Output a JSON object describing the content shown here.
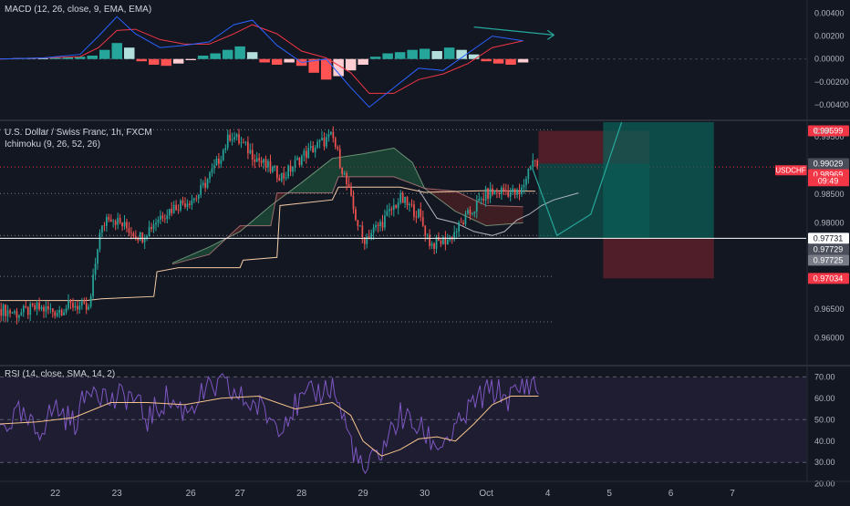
{
  "chart_data": {
    "type": "candlestick",
    "symbol_title": "U.S. Dollar / Swiss Franc, 1h, FXCM",
    "currency": "CHF",
    "symbol_tag": "USDCHF",
    "countdown": "09:49",
    "ichimoku_label": "Ichimoku (9, 26, 52, 26)",
    "x_ticks": [
      "22",
      "23",
      "26",
      "27",
      "28",
      "29",
      "30",
      "Oct",
      "4",
      "5",
      "6",
      "7"
    ],
    "x_tick_positions": [
      1.0,
      2.0,
      3.2,
      4.0,
      5.0,
      6.0,
      7.0,
      8.0,
      9.0,
      10.0,
      11.0,
      12.0
    ],
    "x_range": [
      0.1,
      13.2
    ],
    "price_axis": {
      "ylim": [
        0.9555,
        0.9975
      ],
      "ticks": [
        "0.99500",
        "0.98500",
        "0.98000",
        "0.96500",
        "0.96000"
      ],
      "tick_values": [
        0.995,
        0.985,
        0.98,
        0.965,
        0.96
      ]
    },
    "price_labels": [
      {
        "text": "0.99599",
        "value": 0.99599,
        "color": "#f23645"
      },
      {
        "text": "0.99029",
        "value": 0.99029,
        "color": "#4a4e5a"
      },
      {
        "text": "0.98969",
        "value": 0.98969,
        "color": "#f23645"
      },
      {
        "text": "0.97731",
        "value": 0.97731,
        "color": "#ffffff"
      },
      {
        "text": "0.97729",
        "value": 0.97729,
        "color": "#4a4e5a"
      },
      {
        "text": "0.97725",
        "value": 0.97725,
        "color": "#787b86"
      },
      {
        "text": "0.97034",
        "value": 0.97034,
        "color": "#f23645"
      }
    ],
    "horizontal_levels": [
      0.9962,
      0.9851,
      0.9778,
      0.9707,
      0.9628
    ],
    "current_price": 0.98969,
    "entry_line": 0.97731,
    "close_series": [
      {
        "x": 0.1,
        "y": 0.965
      },
      {
        "x": 0.4,
        "y": 0.9642
      },
      {
        "x": 0.7,
        "y": 0.9652
      },
      {
        "x": 1.0,
        "y": 0.9646
      },
      {
        "x": 1.3,
        "y": 0.9658
      },
      {
        "x": 1.55,
        "y": 0.9648
      },
      {
        "x": 1.7,
        "y": 0.9772
      },
      {
        "x": 1.85,
        "y": 0.9815
      },
      {
        "x": 2.1,
        "y": 0.9795
      },
      {
        "x": 2.4,
        "y": 0.9775
      },
      {
        "x": 2.7,
        "y": 0.9812
      },
      {
        "x": 3.0,
        "y": 0.9832
      },
      {
        "x": 3.3,
        "y": 0.9845
      },
      {
        "x": 3.6,
        "y": 0.9898
      },
      {
        "x": 3.85,
        "y": 0.9955
      },
      {
        "x": 4.1,
        "y": 0.993
      },
      {
        "x": 4.4,
        "y": 0.99
      },
      {
        "x": 4.7,
        "y": 0.988
      },
      {
        "x": 5.0,
        "y": 0.9915
      },
      {
        "x": 5.3,
        "y": 0.9938
      },
      {
        "x": 5.5,
        "y": 0.995
      },
      {
        "x": 5.7,
        "y": 0.988
      },
      {
        "x": 5.85,
        "y": 0.982
      },
      {
        "x": 6.0,
        "y": 0.977
      },
      {
        "x": 6.3,
        "y": 0.98
      },
      {
        "x": 6.6,
        "y": 0.9842
      },
      {
        "x": 6.9,
        "y": 0.9815
      },
      {
        "x": 7.1,
        "y": 0.9762
      },
      {
        "x": 7.4,
        "y": 0.9772
      },
      {
        "x": 7.7,
        "y": 0.9812
      },
      {
        "x": 8.0,
        "y": 0.985
      },
      {
        "x": 8.3,
        "y": 0.9857
      },
      {
        "x": 8.55,
        "y": 0.9848
      },
      {
        "x": 8.75,
        "y": 0.9912
      },
      {
        "x": 8.85,
        "y": 0.9898
      }
    ],
    "kijun": [
      {
        "x": 0.1,
        "y": 0.9665
      },
      {
        "x": 1.5,
        "y": 0.9665
      },
      {
        "x": 1.75,
        "y": 0.9668
      },
      {
        "x": 2.6,
        "y": 0.9672
      },
      {
        "x": 2.65,
        "y": 0.9715
      },
      {
        "x": 3.0,
        "y": 0.9722
      },
      {
        "x": 4.0,
        "y": 0.9722
      },
      {
        "x": 4.05,
        "y": 0.9735
      },
      {
        "x": 4.6,
        "y": 0.974
      },
      {
        "x": 4.65,
        "y": 0.983
      },
      {
        "x": 5.5,
        "y": 0.984
      },
      {
        "x": 5.6,
        "y": 0.9862
      },
      {
        "x": 6.6,
        "y": 0.9862
      },
      {
        "x": 7.0,
        "y": 0.9853
      },
      {
        "x": 8.0,
        "y": 0.9856
      },
      {
        "x": 8.8,
        "y": 0.9855
      }
    ],
    "cloud_span_a": [
      {
        "x": 2.9,
        "y": 0.973
      },
      {
        "x": 3.5,
        "y": 0.9758
      },
      {
        "x": 4.0,
        "y": 0.9785
      },
      {
        "x": 4.5,
        "y": 0.983
      },
      {
        "x": 5.0,
        "y": 0.987
      },
      {
        "x": 5.5,
        "y": 0.9912
      },
      {
        "x": 6.0,
        "y": 0.992
      },
      {
        "x": 6.5,
        "y": 0.993
      },
      {
        "x": 6.8,
        "y": 0.9905
      },
      {
        "x": 7.0,
        "y": 0.986
      },
      {
        "x": 7.5,
        "y": 0.982
      },
      {
        "x": 8.0,
        "y": 0.9795
      },
      {
        "x": 8.6,
        "y": 0.98
      }
    ],
    "cloud_span_b": [
      {
        "x": 2.9,
        "y": 0.9728
      },
      {
        "x": 3.5,
        "y": 0.9745
      },
      {
        "x": 4.0,
        "y": 0.9795
      },
      {
        "x": 4.5,
        "y": 0.9795
      },
      {
        "x": 4.6,
        "y": 0.9852
      },
      {
        "x": 5.5,
        "y": 0.9852
      },
      {
        "x": 5.6,
        "y": 0.988
      },
      {
        "x": 6.5,
        "y": 0.988
      },
      {
        "x": 7.0,
        "y": 0.986
      },
      {
        "x": 7.5,
        "y": 0.9855
      },
      {
        "x": 8.0,
        "y": 0.983
      },
      {
        "x": 8.6,
        "y": 0.9828
      }
    ],
    "chikou": [
      {
        "x": 6.9,
        "y": 0.9858
      },
      {
        "x": 7.2,
        "y": 0.9808
      },
      {
        "x": 7.5,
        "y": 0.98
      },
      {
        "x": 7.8,
        "y": 0.9785
      },
      {
        "x": 8.1,
        "y": 0.9778
      },
      {
        "x": 8.3,
        "y": 0.9785
      },
      {
        "x": 8.5,
        "y": 0.9805
      },
      {
        "x": 8.7,
        "y": 0.9815
      },
      {
        "x": 8.9,
        "y": 0.983
      },
      {
        "x": 9.1,
        "y": 0.984
      },
      {
        "x": 9.5,
        "y": 0.9852
      }
    ],
    "projection_path": [
      {
        "x": 8.75,
        "y": 0.9895
      },
      {
        "x": 9.15,
        "y": 0.9778
      },
      {
        "x": 9.7,
        "y": 0.9815
      },
      {
        "x": 10.2,
        "y": 0.9975
      }
    ],
    "risk_box": {
      "x0": 8.85,
      "x1": 10.65,
      "y_top": 0.99599,
      "y_bot": 0.97731,
      "stop": 0.99599,
      "entry": 0.99029,
      "target": 0.97731
    },
    "long_box": {
      "x0": 9.9,
      "x1": 11.7,
      "entry": 0.97731,
      "target": 0.9975,
      "stop": 0.97034
    },
    "macd": {
      "label": "MACD (12, 26, close, 9, EMA, EMA)",
      "ylim": [
        -0.0052,
        0.005
      ],
      "ticks": [
        "0.00400",
        "0.00200",
        "0.00000",
        "−0.00200",
        "−0.00400"
      ],
      "tick_values": [
        0.004,
        0.002,
        0.0,
        -0.002,
        -0.004
      ],
      "macd_line": [
        {
          "x": 0.1,
          "y": 0.0
        },
        {
          "x": 0.8,
          "y": 0.0001
        },
        {
          "x": 1.4,
          "y": 0.0004
        },
        {
          "x": 1.7,
          "y": 0.002
        },
        {
          "x": 2.0,
          "y": 0.0037
        },
        {
          "x": 2.3,
          "y": 0.0022
        },
        {
          "x": 2.7,
          "y": 0.001
        },
        {
          "x": 3.1,
          "y": 0.0012
        },
        {
          "x": 3.5,
          "y": 0.0015
        },
        {
          "x": 3.9,
          "y": 0.003
        },
        {
          "x": 4.2,
          "y": 0.0034
        },
        {
          "x": 4.6,
          "y": 0.0012
        },
        {
          "x": 5.0,
          "y": -0.0003
        },
        {
          "x": 5.4,
          "y": 0.0
        },
        {
          "x": 5.8,
          "y": -0.0025
        },
        {
          "x": 6.1,
          "y": -0.0042
        },
        {
          "x": 6.5,
          "y": -0.0025
        },
        {
          "x": 6.9,
          "y": -0.0008
        },
        {
          "x": 7.3,
          "y": -0.001
        },
        {
          "x": 7.7,
          "y": 0.0005
        },
        {
          "x": 8.1,
          "y": 0.002
        },
        {
          "x": 8.6,
          "y": 0.0016
        }
      ],
      "signal_line": [
        {
          "x": 0.1,
          "y": 0.0
        },
        {
          "x": 0.8,
          "y": 0.0001
        },
        {
          "x": 1.4,
          "y": 0.0002
        },
        {
          "x": 1.7,
          "y": 0.001
        },
        {
          "x": 2.0,
          "y": 0.0025
        },
        {
          "x": 2.3,
          "y": 0.0026
        },
        {
          "x": 2.7,
          "y": 0.0017
        },
        {
          "x": 3.1,
          "y": 0.0013
        },
        {
          "x": 3.5,
          "y": 0.0013
        },
        {
          "x": 3.9,
          "y": 0.0022
        },
        {
          "x": 4.2,
          "y": 0.003
        },
        {
          "x": 4.6,
          "y": 0.0022
        },
        {
          "x": 5.0,
          "y": 0.0007
        },
        {
          "x": 5.4,
          "y": 0.0001
        },
        {
          "x": 5.8,
          "y": -0.0012
        },
        {
          "x": 6.1,
          "y": -0.003
        },
        {
          "x": 6.5,
          "y": -0.003
        },
        {
          "x": 6.9,
          "y": -0.0018
        },
        {
          "x": 7.3,
          "y": -0.0013
        },
        {
          "x": 7.7,
          "y": -0.0004
        },
        {
          "x": 8.1,
          "y": 0.001
        },
        {
          "x": 8.6,
          "y": 0.0016
        }
      ],
      "histogram": [
        5e-05,
        0.0001,
        8e-05,
        5e-05,
        0.0001,
        0.00015,
        0.0002,
        0.0003,
        0.0008,
        0.0014,
        0.001,
        -0.0002,
        -0.0005,
        -0.0006,
        -0.0004,
        -0.0001,
        0.0003,
        0.0005,
        0.0008,
        0.0011,
        0.0006,
        -0.0003,
        -0.0005,
        -0.0003,
        -0.0006,
        -0.0012,
        -0.0018,
        -0.0015,
        -0.001,
        -0.0005,
        0.0002,
        0.0005,
        0.0006,
        0.0008,
        0.0009,
        0.0007,
        0.001,
        0.0008,
        0.0004,
        -0.0002,
        -0.0004,
        -0.0005,
        -0.0003
      ],
      "arrow": [
        {
          "x": 7.8,
          "y": 0.0028
        },
        {
          "x": 9.1,
          "y": 0.0021
        }
      ]
    },
    "rsi": {
      "label": "RSI (14, close, SMA, 14, 2)",
      "ylim": [
        22.0,
        74.0
      ],
      "band": [
        30.0,
        70.0
      ],
      "mid": 50.0,
      "ticks": [
        "70.00",
        "60.00",
        "50.00",
        "40.00",
        "30.00",
        "20.00"
      ],
      "tick_values": [
        70,
        60,
        50,
        40,
        30,
        20
      ],
      "rsi_line": [
        {
          "x": 0.1,
          "y": 46
        },
        {
          "x": 0.4,
          "y": 52
        },
        {
          "x": 0.7,
          "y": 44
        },
        {
          "x": 1.0,
          "y": 56
        },
        {
          "x": 1.3,
          "y": 48
        },
        {
          "x": 1.6,
          "y": 68
        },
        {
          "x": 1.9,
          "y": 58
        },
        {
          "x": 2.2,
          "y": 62
        },
        {
          "x": 2.5,
          "y": 50
        },
        {
          "x": 2.8,
          "y": 60
        },
        {
          "x": 3.1,
          "y": 54
        },
        {
          "x": 3.4,
          "y": 62
        },
        {
          "x": 3.7,
          "y": 66
        },
        {
          "x": 4.0,
          "y": 60
        },
        {
          "x": 4.3,
          "y": 56
        },
        {
          "x": 4.6,
          "y": 48
        },
        {
          "x": 4.9,
          "y": 56
        },
        {
          "x": 5.2,
          "y": 62
        },
        {
          "x": 5.5,
          "y": 66
        },
        {
          "x": 5.8,
          "y": 40
        },
        {
          "x": 6.0,
          "y": 24
        },
        {
          "x": 6.3,
          "y": 36
        },
        {
          "x": 6.6,
          "y": 52
        },
        {
          "x": 6.9,
          "y": 46
        },
        {
          "x": 7.2,
          "y": 38
        },
        {
          "x": 7.5,
          "y": 44
        },
        {
          "x": 7.8,
          "y": 58
        },
        {
          "x": 8.1,
          "y": 64
        },
        {
          "x": 8.4,
          "y": 60
        },
        {
          "x": 8.7,
          "y": 68
        },
        {
          "x": 8.85,
          "y": 64
        }
      ],
      "rsi_ma": [
        {
          "x": 0.1,
          "y": 48
        },
        {
          "x": 0.7,
          "y": 49
        },
        {
          "x": 1.3,
          "y": 51
        },
        {
          "x": 1.9,
          "y": 58
        },
        {
          "x": 2.5,
          "y": 58
        },
        {
          "x": 3.1,
          "y": 57
        },
        {
          "x": 3.7,
          "y": 60
        },
        {
          "x": 4.3,
          "y": 61
        },
        {
          "x": 4.9,
          "y": 55
        },
        {
          "x": 5.5,
          "y": 58
        },
        {
          "x": 5.8,
          "y": 52
        },
        {
          "x": 6.0,
          "y": 40
        },
        {
          "x": 6.3,
          "y": 33
        },
        {
          "x": 6.6,
          "y": 36
        },
        {
          "x": 6.9,
          "y": 41
        },
        {
          "x": 7.2,
          "y": 42
        },
        {
          "x": 7.5,
          "y": 40
        },
        {
          "x": 7.8,
          "y": 48
        },
        {
          "x": 8.1,
          "y": 57
        },
        {
          "x": 8.4,
          "y": 61
        },
        {
          "x": 8.85,
          "y": 61
        }
      ]
    },
    "colors": {
      "background": "#131722",
      "up": "#26a69a",
      "down": "#ef5350",
      "macd": "#2962ff",
      "signal": "#f23645",
      "rsi": "#7e57c2",
      "rsi_ma": "#f6c38a",
      "kijun": "#f5cba7",
      "chikou": "#b2b5be",
      "cloud_green": "#1e4d3a",
      "cloud_red": "#4d2224",
      "long_zone": "#0b5e55",
      "stop_zone": "#5b2029",
      "grid": "#2a2e39",
      "axis_text": "#b2b5be"
    }
  }
}
